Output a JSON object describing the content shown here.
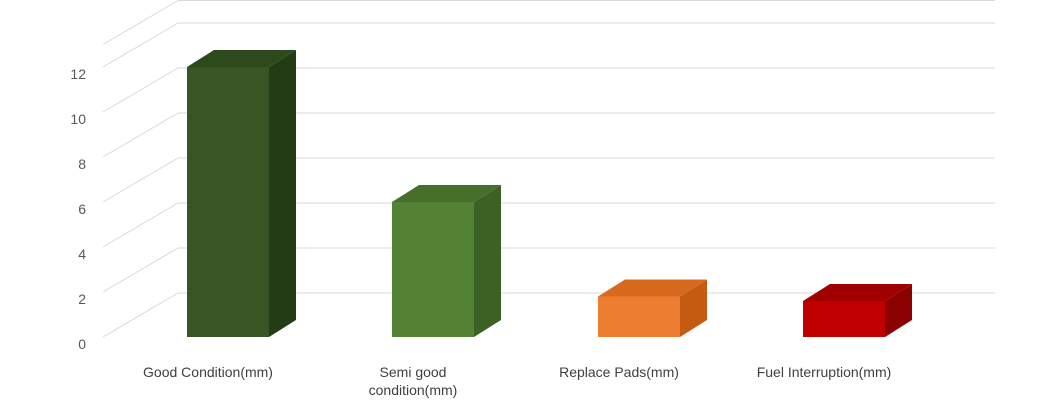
{
  "chart_data": {
    "type": "bar",
    "categories": [
      [
        "Good Condition(mm)"
      ],
      [
        "Semi good",
        "condition(mm)"
      ],
      [
        "Replace Pads(mm)"
      ],
      [
        "Fuel Interruption(mm)"
      ]
    ],
    "values": [
      12,
      6,
      1.8,
      1.6
    ],
    "ylim": [
      0,
      12
    ],
    "yticks": [
      0,
      2,
      4,
      6,
      8,
      10,
      12
    ],
    "grid": true,
    "legend": "none",
    "three_d": true,
    "colors": {
      "bars": [
        {
          "front": "#375623",
          "side": "#233c16",
          "top": "#2c4a1b"
        },
        {
          "front": "#548235",
          "side": "#3c6125",
          "top": "#466f2c"
        },
        {
          "front": "#ed7d31",
          "side": "#c55a11",
          "top": "#d86a20"
        },
        {
          "front": "#c00000",
          "side": "#8b0000",
          "top": "#a10000"
        }
      ],
      "grid": "#d9d9d9",
      "axis_text": "#595959",
      "category_text": "#404040"
    }
  }
}
